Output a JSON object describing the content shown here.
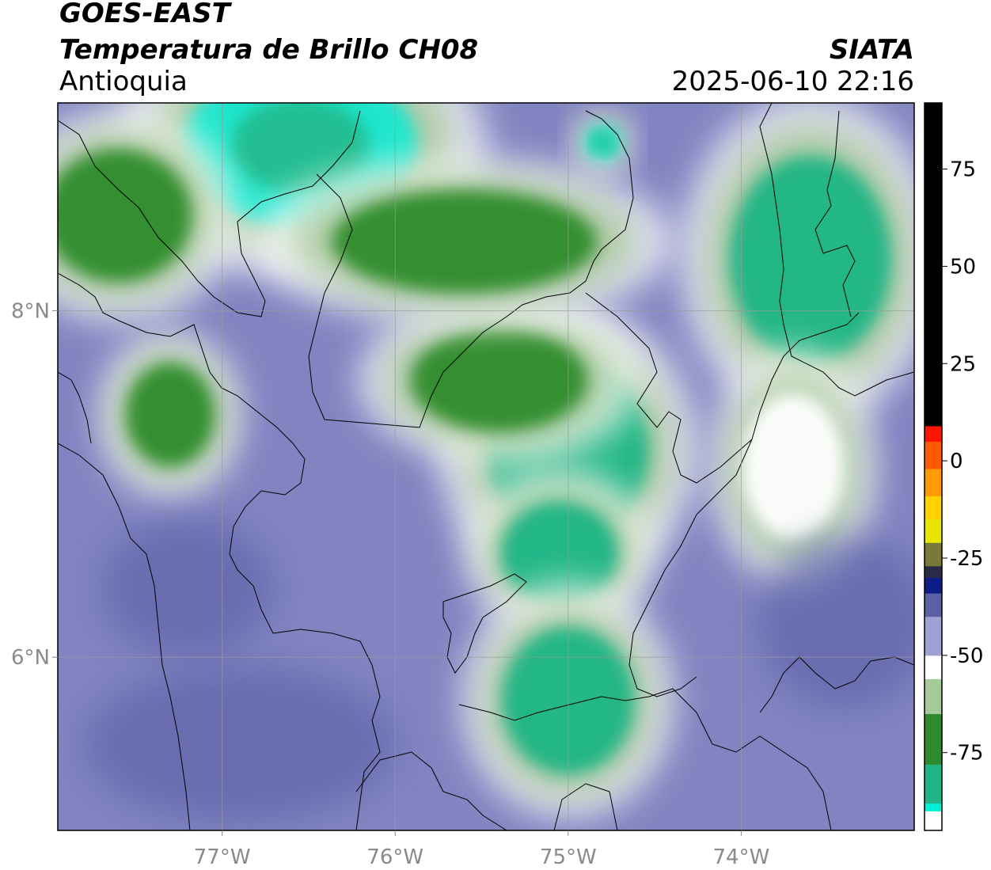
{
  "header": {
    "satellite": "GOES-EAST",
    "product": "Temperatura de Brillo CH08",
    "region": "Antioquia",
    "organization": "SIATA",
    "datetime": "2025-06-10 22:16"
  },
  "map": {
    "lon_ticks": [
      "77°W",
      "76°W",
      "75°W",
      "74°W"
    ],
    "lat_ticks": [
      "8°N",
      "6°N"
    ],
    "lon_range": [
      -77.95,
      -73.0
    ],
    "lat_range": [
      5.0,
      9.2
    ],
    "gridlines": true,
    "colorscale": [
      {
        "v": -95,
        "c": "#ffffff"
      },
      {
        "v": -90,
        "c": "#18e8d0"
      },
      {
        "v": -78,
        "c": "#1fb585"
      },
      {
        "v": -66,
        "c": "#2f8c2c"
      },
      {
        "v": -56,
        "c": "#9cc28c"
      },
      {
        "v": -51,
        "c": "#ffffff"
      },
      {
        "v": -44,
        "c": "#a8acd8"
      },
      {
        "v": -36,
        "c": "#5a5fa6"
      }
    ],
    "features": [
      {
        "name": "north-center-cloud",
        "lon": -76.55,
        "lat": 8.95,
        "rx": 0.8,
        "ry": 0.55,
        "tb": -78
      },
      {
        "name": "nw-cloud",
        "lon": -77.6,
        "lat": 8.55,
        "rx": 0.5,
        "ry": 0.45,
        "tb": -62
      },
      {
        "name": "central-cloud",
        "lon": -75.0,
        "lat": 7.2,
        "rx": 0.55,
        "ry": 0.6,
        "tb": -74
      },
      {
        "name": "central-cloud-lobe",
        "lon": -75.4,
        "lat": 7.6,
        "rx": 0.6,
        "ry": 0.35,
        "tb": -60
      },
      {
        "name": "mid-cloud",
        "lon": -75.05,
        "lat": 6.6,
        "rx": 0.4,
        "ry": 0.35,
        "tb": -72
      },
      {
        "name": "south-cloud",
        "lon": -75.0,
        "lat": 5.75,
        "rx": 0.45,
        "ry": 0.5,
        "tb": -70
      },
      {
        "name": "ne-cloud",
        "lon": -73.6,
        "lat": 8.3,
        "rx": 0.55,
        "ry": 0.7,
        "tb": -66
      },
      {
        "name": "small-cell-north",
        "lon": -74.8,
        "lat": 8.97,
        "rx": 0.12,
        "ry": 0.12,
        "tb": -82
      },
      {
        "name": "west-cloud",
        "lon": -77.3,
        "lat": 7.4,
        "rx": 0.3,
        "ry": 0.35,
        "tb": -60
      },
      {
        "name": "north-belt",
        "lon": -75.6,
        "lat": 8.4,
        "rx": 0.9,
        "ry": 0.35,
        "tb": -56
      },
      {
        "name": "east-band",
        "lon": -73.7,
        "lat": 7.1,
        "rx": 0.35,
        "ry": 0.5,
        "tb": -50
      }
    ],
    "colorbar": {
      "range": [
        -95,
        92
      ],
      "ticks": [
        "75",
        "50",
        "25",
        "0",
        "-25",
        "-50",
        "-75"
      ],
      "tick_values": [
        75,
        50,
        25,
        0,
        -25,
        -50,
        -75
      ],
      "segments": [
        {
          "from": -95,
          "to": -90,
          "c": "#ffffff"
        },
        {
          "from": -90,
          "to": -88,
          "c": "#00f0d8"
        },
        {
          "from": -88,
          "to": -78,
          "c": "#20b589"
        },
        {
          "from": -78,
          "to": -65,
          "c": "#2e8a2c"
        },
        {
          "from": -65,
          "to": -56,
          "c": "#a6c99a"
        },
        {
          "from": -56,
          "to": -50,
          "c": "#ffffff"
        },
        {
          "from": -50,
          "to": -40,
          "c": "#9da2d3"
        },
        {
          "from": -40,
          "to": -34,
          "c": "#5a5fa6"
        },
        {
          "from": -34,
          "to": -30,
          "c": "#0e1c88"
        },
        {
          "from": -30,
          "to": -27,
          "c": "#2a2a48"
        },
        {
          "from": -27,
          "to": -21,
          "c": "#797a3a"
        },
        {
          "from": -21,
          "to": -15,
          "c": "#e8e600"
        },
        {
          "from": -15,
          "to": -9,
          "c": "#ffd200"
        },
        {
          "from": -9,
          "to": -2,
          "c": "#ff9a00"
        },
        {
          "from": -2,
          "to": 5,
          "c": "#ff5a00"
        },
        {
          "from": 5,
          "to": 9,
          "c": "#ff1400"
        },
        {
          "from": 9,
          "to": 92,
          "c": "#000000"
        }
      ]
    }
  }
}
